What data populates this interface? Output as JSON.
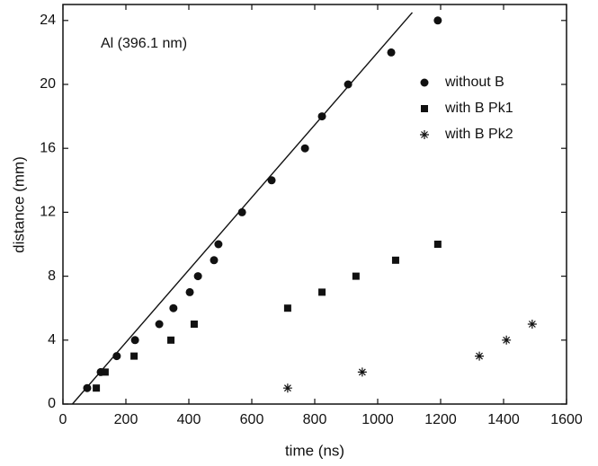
{
  "chart_data": {
    "type": "scatter",
    "annotation": "Al (396.1 nm)",
    "x_label": "time (ns)",
    "y_label": "distance (mm)",
    "xlim": [
      0,
      1600
    ],
    "xticks": [
      0,
      200,
      400,
      600,
      800,
      1000,
      1200,
      1400,
      1600
    ],
    "ylim": [
      0,
      25
    ],
    "yticks": [
      0,
      4,
      8,
      12,
      16,
      20,
      24
    ],
    "legend": "upper right",
    "series": [
      {
        "name": "without B",
        "color": "#111111",
        "marker": "circle",
        "x": [
          77,
          120,
          171,
          229,
          306,
          351,
          403,
          429,
          480,
          494,
          569,
          663,
          769,
          823,
          906,
          1043,
          1191
        ],
        "values": [
          1,
          2,
          3,
          4,
          5,
          6,
          7,
          8,
          9,
          10,
          12,
          14,
          16,
          18,
          20,
          22,
          24
        ]
      },
      {
        "name": "with B Pk1",
        "color": "#111111",
        "marker": "square",
        "x": [
          106,
          134,
          226,
          343,
          417,
          714,
          823,
          931,
          1057,
          1191
        ],
        "values": [
          1,
          2,
          3,
          4,
          5,
          6,
          7,
          8,
          9,
          10
        ]
      },
      {
        "name": "with B Pk2",
        "color": "#111111",
        "marker": "star",
        "x": [
          714,
          951,
          1323,
          1409,
          1491
        ],
        "values": [
          1,
          2,
          3,
          4,
          5
        ]
      }
    ],
    "fit_line": {
      "color": "#111111",
      "x": [
        30,
        1110
      ],
      "values": [
        0,
        24.5
      ]
    }
  }
}
